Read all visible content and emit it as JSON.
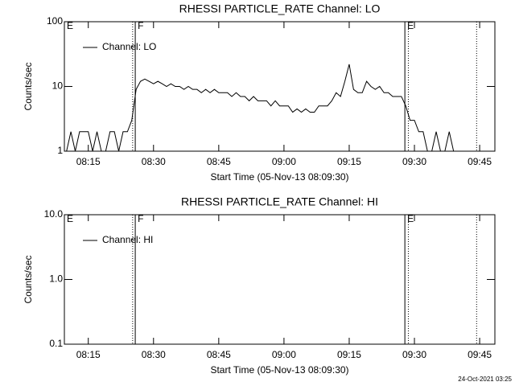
{
  "chart_data": [
    {
      "type": "line",
      "title": "RHESSI PARTICLE_RATE Channel: LO",
      "xlabel": "Start Time (05-Nov-13 08:09:30)",
      "ylabel": "Counts/sec",
      "log_y": true,
      "legend": "upper left",
      "xlim": [
        9.5,
        108.5
      ],
      "xticks": [
        {
          "value": 15,
          "label": "08:15"
        },
        {
          "value": 30,
          "label": "08:30"
        },
        {
          "value": 45,
          "label": "08:45"
        },
        {
          "value": 60,
          "label": "09:00"
        },
        {
          "value": 75,
          "label": "09:15"
        },
        {
          "value": 90,
          "label": "09:30"
        },
        {
          "value": 105,
          "label": "09:45"
        }
      ],
      "ylim": [
        1,
        100
      ],
      "yticks": [
        1,
        10,
        100
      ],
      "vlines": [
        {
          "x": 25.2,
          "style": "dotted"
        },
        {
          "x": 25.8,
          "style": "solid"
        },
        {
          "x": 87.8,
          "style": "solid"
        },
        {
          "x": 88.6,
          "style": "dotted"
        },
        {
          "x": 104.3,
          "style": "dotted"
        }
      ],
      "flags": [
        {
          "x": 9.5,
          "label": "E"
        },
        {
          "x": 25.8,
          "label": "F"
        },
        {
          "x": 87.8,
          "label": "E"
        }
      ],
      "x": [
        10,
        11,
        12,
        13,
        14,
        15,
        16,
        17,
        18,
        19,
        20,
        21,
        22,
        23,
        24,
        25,
        26,
        27,
        28,
        29,
        30,
        31,
        32,
        33,
        34,
        35,
        36,
        37,
        38,
        39,
        40,
        41,
        42,
        43,
        44,
        45,
        46,
        47,
        48,
        49,
        50,
        51,
        52,
        53,
        54,
        55,
        56,
        57,
        58,
        59,
        60,
        61,
        62,
        63,
        64,
        65,
        66,
        67,
        68,
        69,
        70,
        71,
        72,
        73,
        74,
        75,
        76,
        77,
        78,
        79,
        80,
        81,
        82,
        83,
        84,
        85,
        86,
        87,
        88,
        89,
        90,
        91,
        92,
        93,
        94,
        95,
        96,
        97,
        98,
        99,
        100,
        101,
        102,
        103,
        104,
        105,
        106,
        107,
        108
      ],
      "series": [
        {
          "name": "Channel: LO",
          "color": "#000000",
          "values": [
            1,
            2,
            1,
            2,
            2,
            2,
            1,
            2,
            1,
            1,
            2,
            2,
            1,
            2,
            2,
            3,
            9,
            12,
            13,
            12,
            11,
            12,
            11,
            10,
            11,
            10,
            10,
            9,
            10,
            9,
            9,
            8,
            9,
            8,
            9,
            8,
            8,
            8,
            7,
            8,
            7,
            7,
            6,
            7,
            6,
            6,
            6,
            5,
            6,
            5,
            5,
            5,
            4,
            4.5,
            4,
            4.5,
            4,
            4,
            5,
            5,
            5,
            6,
            8,
            7,
            12,
            22,
            9,
            8,
            8,
            12,
            10,
            9,
            10,
            8,
            8,
            7,
            7,
            7,
            5,
            3,
            3,
            2,
            2,
            1,
            1,
            2,
            1,
            1,
            2,
            1,
            1,
            1,
            1,
            1,
            1,
            1,
            1,
            1,
            1
          ]
        }
      ]
    },
    {
      "type": "line",
      "title": "RHESSI PARTICLE_RATE Channel: HI",
      "xlabel": "Start Time (05-Nov-13 08:09:30)",
      "ylabel": "Counts/sec",
      "log_y": true,
      "legend": "upper left",
      "xlim": [
        9.5,
        108.5
      ],
      "xticks": [
        {
          "value": 15,
          "label": "08:15"
        },
        {
          "value": 30,
          "label": "08:30"
        },
        {
          "value": 45,
          "label": "08:45"
        },
        {
          "value": 60,
          "label": "09:00"
        },
        {
          "value": 75,
          "label": "09:15"
        },
        {
          "value": 90,
          "label": "09:30"
        },
        {
          "value": 105,
          "label": "09:45"
        }
      ],
      "ylim": [
        0.1,
        10
      ],
      "yticks": [
        {
          "value": 0.1,
          "label": "0.1"
        },
        {
          "value": 1,
          "label": "1.0"
        },
        {
          "value": 10,
          "label": "10.0"
        }
      ],
      "vlines": [
        {
          "x": 25.2,
          "style": "dotted"
        },
        {
          "x": 25.8,
          "style": "solid"
        },
        {
          "x": 87.8,
          "style": "solid"
        },
        {
          "x": 88.6,
          "style": "dotted"
        },
        {
          "x": 104.3,
          "style": "dotted"
        }
      ],
      "flags": [
        {
          "x": 9.5,
          "label": "E"
        },
        {
          "x": 25.8,
          "label": "F"
        },
        {
          "x": 87.8,
          "label": "E"
        }
      ],
      "series": [
        {
          "name": "Channel: HI",
          "color": "#000000"
        }
      ]
    }
  ],
  "timestamp": "24-Oct-2021 03:25"
}
